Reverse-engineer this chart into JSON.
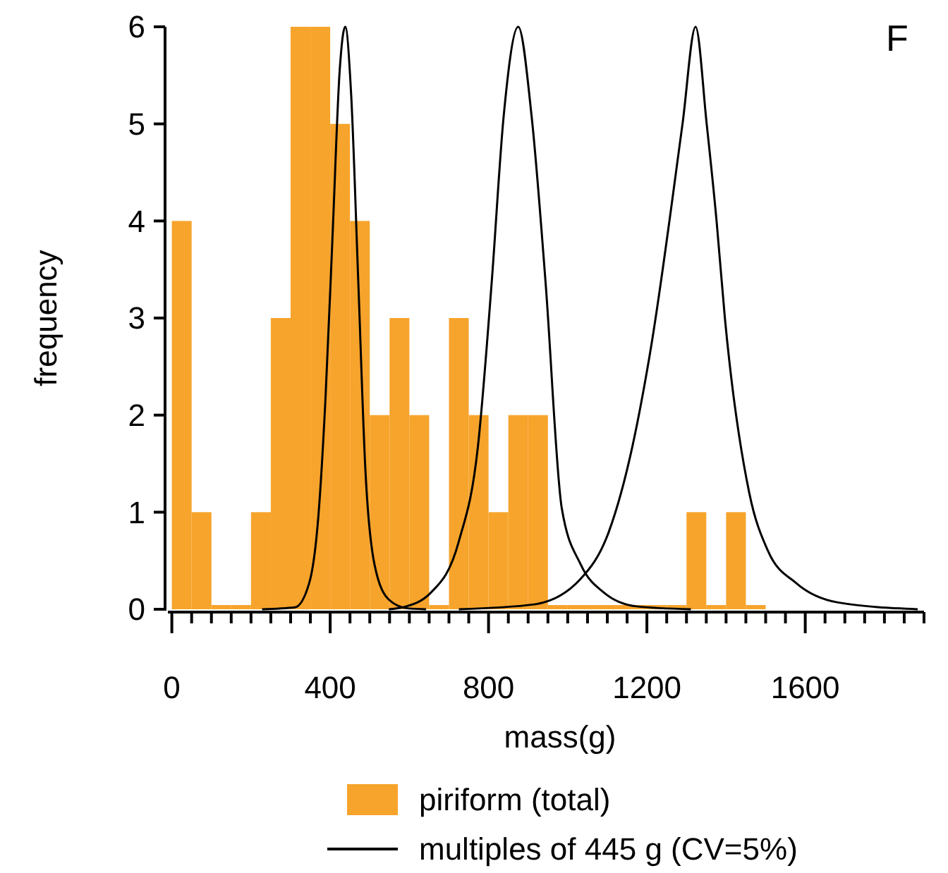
{
  "chart_data": {
    "type": "histogram",
    "xlabel": "mass(g)",
    "ylabel": "frequency",
    "annotations": [
      "F"
    ],
    "bins": [
      0,
      50,
      100,
      150,
      200,
      250,
      300,
      350,
      400,
      450,
      500,
      550,
      600,
      650,
      700,
      750,
      800,
      850,
      900,
      950,
      1000,
      1050,
      1100,
      1150,
      1200,
      1250,
      1300,
      1350,
      1400,
      1450,
      1500
    ],
    "xlim": [
      -10,
      1900
    ],
    "ylim": [
      0,
      6
    ],
    "xticks": [
      0,
      {
        "value": 50,
        "label": null
      },
      {
        "value": 100,
        "label": null
      },
      {
        "value": 150,
        "label": null
      },
      {
        "value": 200,
        "label": null
      },
      {
        "value": 250,
        "label": null
      },
      {
        "value": 300,
        "label": null
      },
      {
        "value": 350,
        "label": null
      },
      400,
      {
        "value": 450,
        "label": null
      },
      {
        "value": 500,
        "label": null
      },
      {
        "value": 550,
        "label": null
      },
      {
        "value": 600,
        "label": null
      },
      {
        "value": 650,
        "label": null
      },
      {
        "value": 700,
        "label": null
      },
      {
        "value": 750,
        "label": null
      },
      800,
      {
        "value": 850,
        "label": null
      },
      {
        "value": 900,
        "label": null
      },
      {
        "value": 950,
        "label": null
      },
      {
        "value": 1000,
        "label": null
      },
      {
        "value": 1050,
        "label": null
      },
      {
        "value": 1100,
        "label": null
      },
      {
        "value": 1150,
        "label": null
      },
      1200,
      {
        "value": 1250,
        "label": null
      },
      {
        "value": 1300,
        "label": null
      },
      {
        "value": 1350,
        "label": null
      },
      {
        "value": 1400,
        "label": null
      },
      {
        "value": 1450,
        "label": null
      },
      {
        "value": 1500,
        "label": null
      },
      {
        "value": 1550,
        "label": null
      },
      1600,
      {
        "value": 1650,
        "label": null
      },
      {
        "value": 1700,
        "label": null
      },
      {
        "value": 1750,
        "label": null
      },
      {
        "value": 1800,
        "label": null
      },
      {
        "value": 1850,
        "label": null
      },
      {
        "value": 1900,
        "label": null
      }
    ],
    "yticks": [
      0,
      1,
      2,
      3,
      4,
      5,
      6
    ],
    "grid": false,
    "legend": "bottom",
    "series": [
      {
        "type": "histogram",
        "name": "piriform (total)",
        "color": "#f7a42c",
        "values": [
          4,
          1,
          0,
          0,
          1,
          3,
          6,
          6,
          5,
          4,
          2,
          3,
          2,
          0,
          3,
          2,
          1,
          2,
          2,
          0,
          0,
          0,
          0,
          0,
          0,
          0,
          1,
          0,
          1,
          0
        ]
      },
      {
        "type": "line",
        "name": "multiples of 445 g (CV=5%)",
        "color": "#000000",
        "x": [
          228,
          311,
          347,
          370,
          388,
          406,
          424,
          438,
          453,
          471,
          489,
          512,
          548,
          595,
          642
        ],
        "values": [
          0,
          0.02,
          0.27,
          0.95,
          2.16,
          3.85,
          5.55,
          6,
          5.3,
          3.37,
          1.43,
          0.46,
          0.1,
          0.01,
          0
        ]
      },
      {
        "type": "line",
        "color": "#000000",
        "x": [
          548,
          583,
          654,
          725,
          773,
          808,
          838,
          875,
          909,
          944,
          985,
          1033,
          1092,
          1174,
          1311
        ],
        "values": [
          0,
          0.02,
          0.17,
          0.7,
          1.67,
          3.37,
          5.07,
          6,
          5.07,
          3.37,
          1.04,
          0.46,
          0.17,
          0.03,
          0
        ]
      },
      {
        "type": "line",
        "color": "#000000",
        "x": [
          725,
          915,
          1032,
          1104,
          1163,
          1208,
          1290,
          1323,
          1351,
          1376,
          1397,
          1459,
          1506,
          1577,
          1683,
          1884
        ],
        "values": [
          0,
          0.05,
          0.31,
          0.8,
          1.67,
          2.64,
          5,
          6,
          5,
          4,
          3,
          1.19,
          0.6,
          0.27,
          0.07,
          0
        ]
      }
    ]
  }
}
